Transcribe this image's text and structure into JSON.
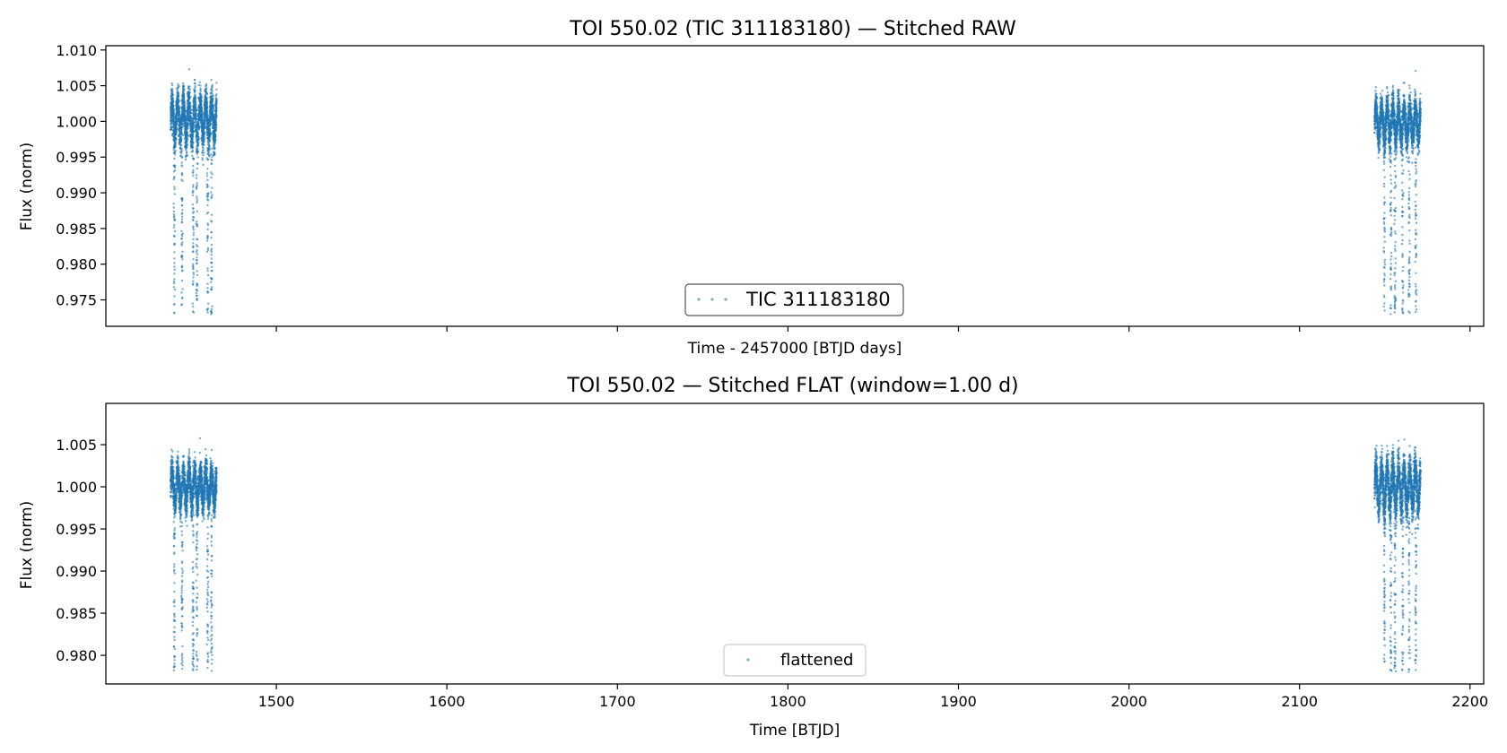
{
  "chart_data": [
    {
      "type": "scatter",
      "title": "TOI 550.02 (TIC 311183180) — Stitched RAW",
      "xlabel": "Time - 2457000 [BTJD days]",
      "ylabel": "Flux (norm)",
      "xlim": [
        1400,
        2208
      ],
      "ylim": [
        0.9713,
        1.0106
      ],
      "yticks": [
        "1.010",
        "1.005",
        "1.000",
        "0.995",
        "0.990",
        "0.985",
        "0.980",
        "0.975"
      ],
      "xticks": [
        1500,
        1600,
        1700,
        1800,
        1900,
        2000,
        2100,
        2200
      ],
      "show_xtick_labels": false,
      "grid": false,
      "legend": {
        "position": "bottom-center",
        "entries": [
          "TIC 311183180"
        ]
      },
      "series": [
        {
          "name": "TIC 311183180",
          "color": "#1f77b4",
          "segments": [
            {
              "t_start": 1438.0,
              "t_end": 1465.0,
              "baseline": 1.0003,
              "variability": 0.004,
              "transit_depth_min": 0.973,
              "transits": [
                1440.2,
                1444.7,
                1451.2,
                1453.4,
                1459.7,
                1462.0
              ]
            },
            {
              "t_start": 2144.0,
              "t_end": 2171.0,
              "baseline": 0.9998,
              "variability": 0.0035,
              "transit_depth_min": 0.973,
              "transits": [
                2149.8,
                2153.6,
                2156.0,
                2160.5,
                2164.3,
                2168.2
              ]
            }
          ]
        }
      ]
    },
    {
      "type": "scatter",
      "title": "TOI 550.02 — Stitched FLAT (window=1.00 d)",
      "xlabel": "Time [BTJD]",
      "ylabel": "Flux (norm)",
      "xlim": [
        1400,
        2208
      ],
      "ylim": [
        0.9766,
        1.0099
      ],
      "yticks": [
        "1.005",
        "1.000",
        "0.995",
        "0.990",
        "0.985",
        "0.980"
      ],
      "xticks": [
        1500,
        1600,
        1700,
        1800,
        1900,
        2000,
        2100,
        2200
      ],
      "show_xtick_labels": true,
      "grid": false,
      "legend": {
        "position": "bottom-center",
        "entries": [
          "flattened"
        ]
      },
      "series": [
        {
          "name": "flattened",
          "color": "#1f77b4",
          "segments": [
            {
              "t_start": 1438.0,
              "t_end": 1465.0,
              "baseline": 1.0,
              "variability": 0.003,
              "transit_depth_min": 0.978,
              "transits": [
                1440.2,
                1444.7,
                1451.2,
                1453.4,
                1459.7,
                1462.0
              ]
            },
            {
              "t_start": 2144.0,
              "t_end": 2171.0,
              "baseline": 1.0,
              "variability": 0.0035,
              "transit_depth_min": 0.978,
              "transits": [
                2149.8,
                2153.6,
                2156.0,
                2160.5,
                2164.3,
                2168.2
              ]
            }
          ]
        }
      ]
    }
  ]
}
